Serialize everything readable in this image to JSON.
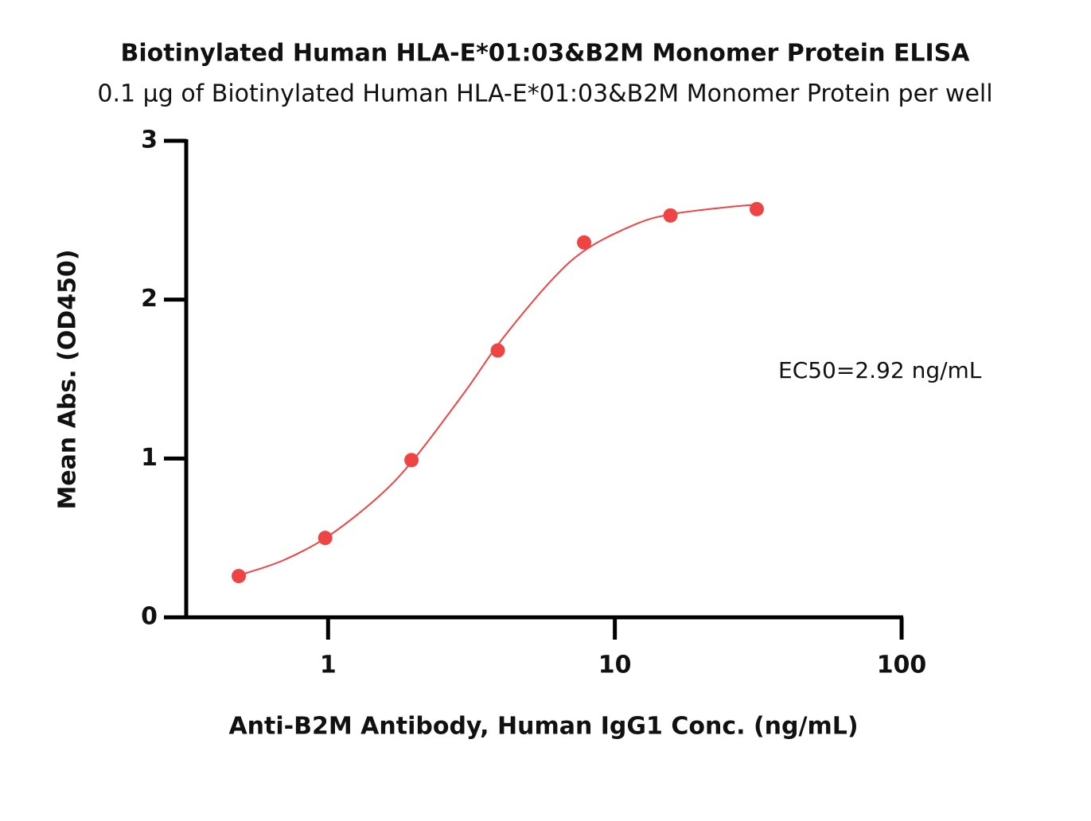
{
  "chart_data": {
    "type": "scatter",
    "title": "Biotinylated Human HLA-E*01:03&B2M Monomer Protein ELISA",
    "subtitle": "0.1 μg of Biotinylated Human HLA-E*01:03&B2M Monomer Protein per well",
    "x_label": "Anti-B2M Antibody, Human IgG1 Conc. (ng/mL)",
    "y_label": "Mean Abs. (OD450)",
    "annotation": "EC50=2.92 ng/mL",
    "x": [
      0.488,
      0.977,
      1.953,
      3.906,
      7.8125,
      15.625,
      31.25
    ],
    "values": [
      0.26,
      0.5,
      0.99,
      1.68,
      2.36,
      2.53,
      2.57
    ],
    "color": "#ee4444",
    "curve": {
      "x": [
        0.5,
        0.7,
        1,
        1.5,
        2,
        3,
        4,
        6,
        8,
        12,
        16,
        24,
        32
      ],
      "values": [
        0.27,
        0.36,
        0.51,
        0.76,
        1.0,
        1.42,
        1.74,
        2.12,
        2.32,
        2.48,
        2.54,
        2.58,
        2.6
      ]
    },
    "xscale": "log",
    "xlim": [
      0.32,
      100
    ],
    "xticks": [
      1,
      10,
      100
    ],
    "ylim": [
      0,
      3
    ],
    "yticks": [
      0,
      1,
      2,
      3
    ]
  }
}
